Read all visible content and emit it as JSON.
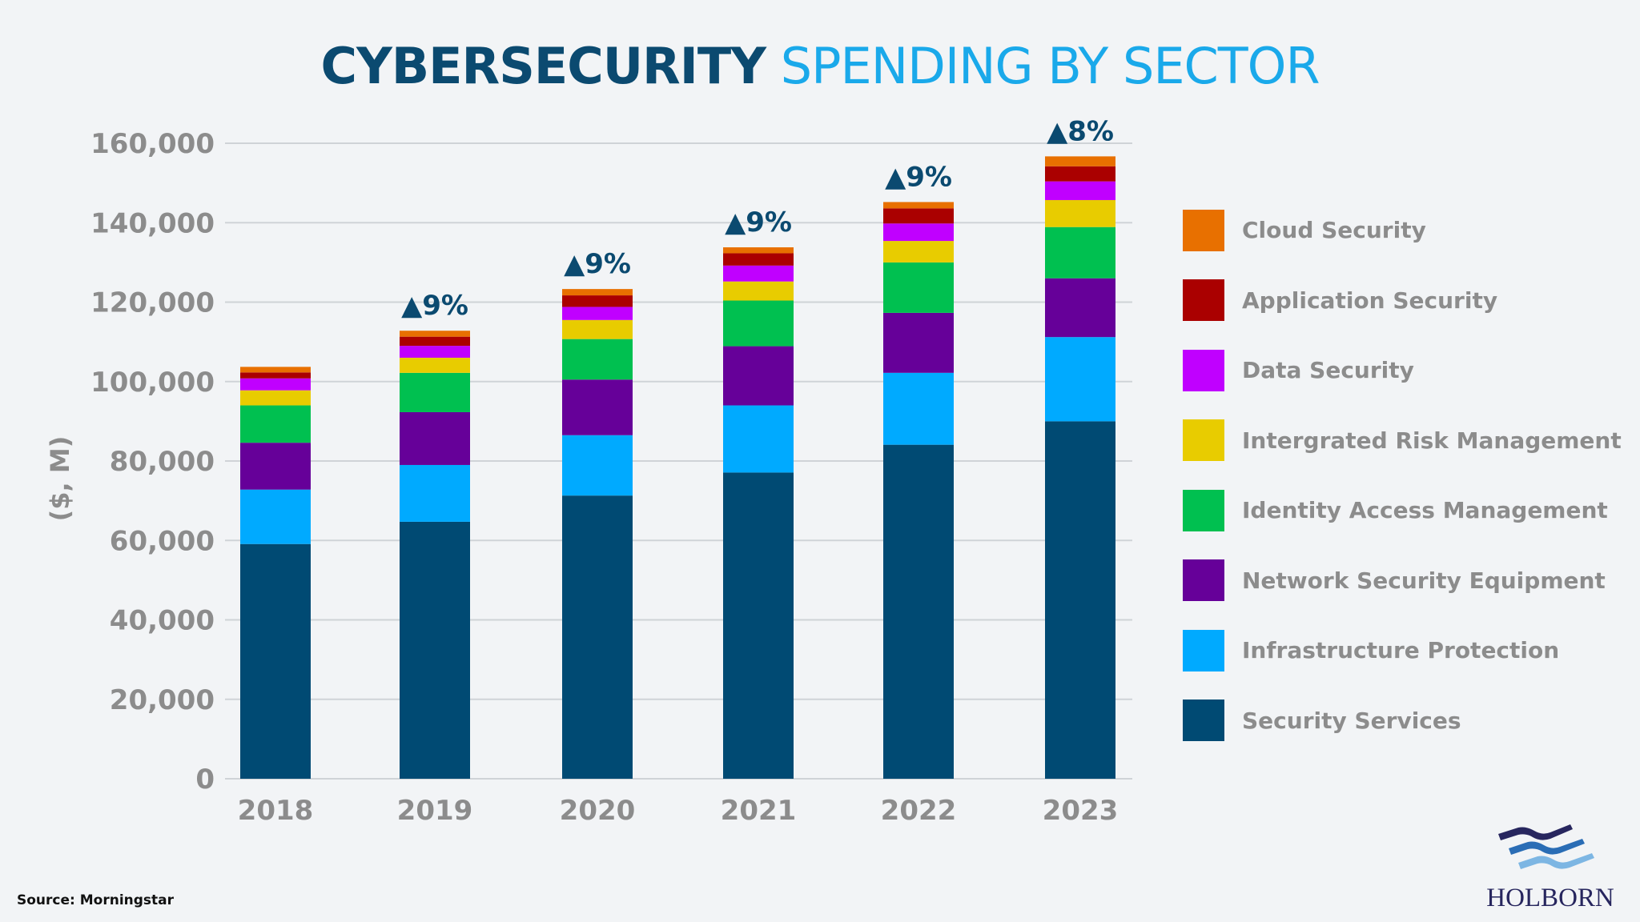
{
  "title": {
    "bold": "CYBERSECURITY",
    "light": "SPENDING BY SECTOR"
  },
  "source": "Source: Morningstar",
  "logo_text": "HOLBORN",
  "chart_data": {
    "type": "bar",
    "stacked": true,
    "ylabel": "($, M)",
    "xlabel": "",
    "ylim": [
      0,
      160000
    ],
    "yticks": [
      0,
      20000,
      40000,
      60000,
      80000,
      100000,
      120000,
      140000,
      160000
    ],
    "ytick_labels": [
      "0",
      "20,000",
      "40,000",
      "60,000",
      "80,000",
      "100,000",
      "120,000",
      "140,000",
      "160,000"
    ],
    "grid": true,
    "legend": "right",
    "categories": [
      "2018",
      "2019",
      "2020",
      "2021",
      "2022",
      "2023"
    ],
    "growth_labels": [
      "",
      "▲9%",
      "▲9%",
      "▲9%",
      "▲9%",
      "▲8%"
    ],
    "series": [
      {
        "name": "Security Services",
        "color": "#004a73",
        "values": [
          59100,
          64700,
          71300,
          77100,
          84100,
          90000
        ]
      },
      {
        "name": "Infrastructure Protection",
        "color": "#00aaff",
        "values": [
          13700,
          14300,
          15200,
          16900,
          18100,
          21200
        ]
      },
      {
        "name": "Network Security Equipment",
        "color": "#660099",
        "values": [
          11800,
          13300,
          14000,
          14900,
          15100,
          14800
        ]
      },
      {
        "name": "Identity Access Management",
        "color": "#00c050",
        "values": [
          9400,
          9900,
          10200,
          11500,
          12700,
          12900
        ]
      },
      {
        "name": "Intergrated Risk Management",
        "color": "#e8cc00",
        "values": [
          3800,
          3800,
          4800,
          4800,
          5400,
          6800
        ]
      },
      {
        "name": "Data Security",
        "color": "#c000ff",
        "values": [
          3000,
          3000,
          3300,
          4000,
          4400,
          4700
        ]
      },
      {
        "name": "Application Security",
        "color": "#aa0000",
        "values": [
          1500,
          2300,
          2900,
          3100,
          3800,
          3800
        ]
      },
      {
        "name": "Cloud Security",
        "color": "#e87000",
        "values": [
          1400,
          1500,
          1600,
          1500,
          1600,
          2500
        ]
      }
    ]
  }
}
